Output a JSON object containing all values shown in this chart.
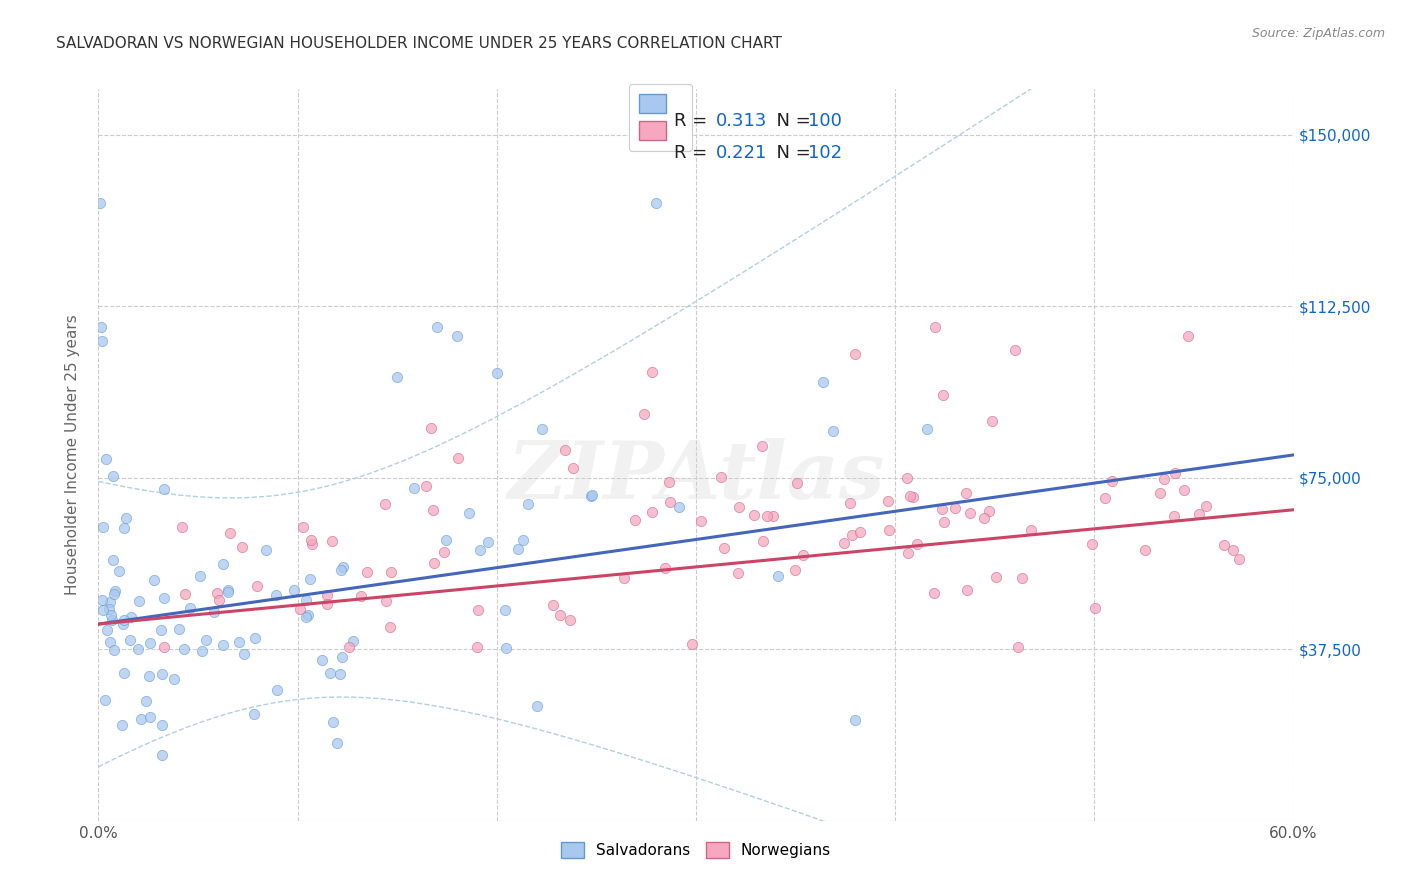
{
  "title": "SALVADORAN VS NORWEGIAN HOUSEHOLDER INCOME UNDER 25 YEARS CORRELATION CHART",
  "source": "Source: ZipAtlas.com",
  "ylabel": "Householder Income Under 25 years",
  "xlim": [
    0.0,
    0.6
  ],
  "ylim": [
    0,
    160000
  ],
  "yticks": [
    0,
    37500,
    75000,
    112500,
    150000
  ],
  "xticks": [
    0.0,
    0.1,
    0.2,
    0.3,
    0.4,
    0.5,
    0.6
  ],
  "salvadoran_color": "#A8C8F0",
  "norwegian_color": "#F5A8C0",
  "salvadoran_edge": "#6699CC",
  "norwegian_edge": "#CC6688",
  "trend_salvadoran": "#4466BB",
  "trend_norwegian": "#CC4466",
  "trend_ci_color": "#AACCDD",
  "background_color": "#FFFFFF",
  "grid_color": "#CCCCCC",
  "watermark": "ZIPAtlas",
  "title_color": "#333333",
  "axis_label_color": "#666666",
  "label_color_black": "#222222",
  "label_color_blue": "#1166CC",
  "R_salvadoran": 0.313,
  "N_salvadoran": 100,
  "R_norwegian": 0.221,
  "N_norwegian": 102,
  "scatter_alpha": 0.75,
  "scatter_size": 55,
  "seed": 42
}
